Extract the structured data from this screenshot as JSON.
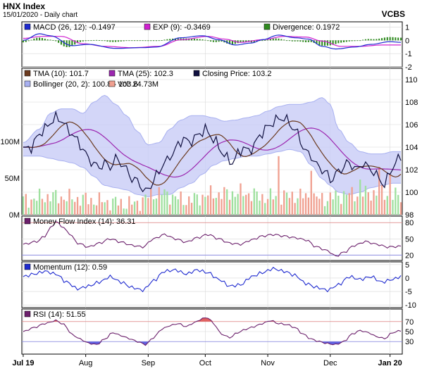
{
  "header": {
    "title": "HNX Index",
    "subtitle": "15/01/2020 - Daily chart",
    "brand": "VCBS"
  },
  "x_axis": {
    "labels": [
      "Jul 19",
      "Aug",
      "Sep",
      "Oct",
      "Nov",
      "Dec",
      "Jan 20"
    ],
    "positions": [
      0,
      23,
      46,
      67,
      90,
      113,
      135
    ],
    "count": 140
  },
  "chart_data": [
    {
      "panel": "macd",
      "type": "line",
      "legend": [
        {
          "label": "MACD (26, 12): -0.1497",
          "color": "#1f2bd0"
        },
        {
          "label": "EXP (9): -0.3469",
          "color": "#d020d0"
        },
        {
          "label": "Divergence: 0.1972",
          "color": "#2f8a1f"
        }
      ],
      "ylim": [
        -2,
        1.4
      ],
      "ticks": [
        1,
        0,
        -1,
        -2
      ],
      "macd_anchors": [
        [
          0,
          0
        ],
        [
          6,
          0.5
        ],
        [
          10,
          0.35
        ],
        [
          18,
          -0.4
        ],
        [
          24,
          -0.3
        ],
        [
          34,
          -0.6
        ],
        [
          44,
          -0.55
        ],
        [
          49,
          -0.5
        ],
        [
          58,
          0.2
        ],
        [
          66,
          0.35
        ],
        [
          72,
          0.05
        ],
        [
          78,
          -0.35
        ],
        [
          84,
          -0.2
        ],
        [
          88,
          0.05
        ],
        [
          94,
          0.4
        ],
        [
          100,
          0.2
        ],
        [
          105,
          0.1
        ],
        [
          110,
          -0.45
        ],
        [
          115,
          -0.65
        ],
        [
          122,
          -0.5
        ],
        [
          128,
          -0.3
        ],
        [
          135,
          -0.1
        ],
        [
          139,
          -0.15
        ]
      ],
      "signal_anchors": [
        [
          0,
          0.15
        ],
        [
          7,
          0.3
        ],
        [
          14,
          0.3
        ],
        [
          22,
          -0.25
        ],
        [
          30,
          -0.45
        ],
        [
          40,
          -0.55
        ],
        [
          50,
          -0.45
        ],
        [
          58,
          0.05
        ],
        [
          68,
          0.3
        ],
        [
          74,
          0.1
        ],
        [
          80,
          -0.15
        ],
        [
          88,
          0.05
        ],
        [
          96,
          0.3
        ],
        [
          104,
          0.25
        ],
        [
          110,
          -0.05
        ],
        [
          117,
          -0.45
        ],
        [
          124,
          -0.45
        ],
        [
          132,
          -0.35
        ],
        [
          139,
          -0.35
        ]
      ]
    },
    {
      "panel": "price",
      "type": "line",
      "legend": [
        {
          "label": "TMA (10): 101.7",
          "color": "#6b3a1f"
        },
        {
          "label": "TMA (25): 102.3",
          "color": "#9c27b0"
        },
        {
          "label": "Closing Price: 103.2",
          "color": "#101040"
        },
        {
          "label": "Bollinger (20, 2): 100.8 - 103.6",
          "color": "#a8b0f0"
        },
        {
          "label": "Vol: 24.73M",
          "color": "#f0a090"
        }
      ],
      "ylim": [
        98,
        111
      ],
      "ticks": [
        98,
        100,
        102,
        104,
        106,
        108,
        110
      ],
      "volume_ticks": [
        "100M",
        "50M",
        "0M"
      ],
      "volume_max": 200,
      "close_anchors": [
        [
          0,
          103.8
        ],
        [
          3,
          104.0
        ],
        [
          6,
          105.2
        ],
        [
          8,
          105.6
        ],
        [
          10,
          106.2
        ],
        [
          12,
          106.6
        ],
        [
          14,
          106.4
        ],
        [
          17,
          105.4
        ],
        [
          20,
          104.6
        ],
        [
          22,
          103.8
        ],
        [
          24,
          103.0
        ],
        [
          26,
          102.5
        ],
        [
          28,
          102.2
        ],
        [
          30,
          102.6
        ],
        [
          32,
          102.2
        ],
        [
          34,
          103.0
        ],
        [
          36,
          102.6
        ],
        [
          38,
          102.0
        ],
        [
          40,
          101.2
        ],
        [
          42,
          101.0
        ],
        [
          44,
          100.3
        ],
        [
          45,
          100.0
        ],
        [
          47,
          100.6
        ],
        [
          49,
          101.5
        ],
        [
          52,
          102.6
        ],
        [
          55,
          103.4
        ],
        [
          57,
          104.2
        ],
        [
          59,
          104.8
        ],
        [
          61,
          104.4
        ],
        [
          63,
          104.8
        ],
        [
          65,
          105.2
        ],
        [
          67,
          105.6
        ],
        [
          69,
          105.0
        ],
        [
          71,
          104.4
        ],
        [
          73,
          103.6
        ],
        [
          75,
          103.0
        ],
        [
          77,
          102.6
        ],
        [
          79,
          103.4
        ],
        [
          81,
          104.0
        ],
        [
          83,
          103.6
        ],
        [
          85,
          104.2
        ],
        [
          87,
          105.0
        ],
        [
          89,
          105.6
        ],
        [
          91,
          106.0
        ],
        [
          93,
          106.4
        ],
        [
          95,
          106.6
        ],
        [
          97,
          106.4
        ],
        [
          99,
          105.8
        ],
        [
          101,
          105.2
        ],
        [
          103,
          104.0
        ],
        [
          104,
          103.6
        ],
        [
          106,
          103.2
        ],
        [
          108,
          102.4
        ],
        [
          110,
          102.0
        ],
        [
          112,
          101.6
        ],
        [
          113,
          101.0
        ],
        [
          115,
          101.6
        ],
        [
          117,
          102.0
        ],
        [
          119,
          102.6
        ],
        [
          121,
          102.4
        ],
        [
          123,
          102.0
        ],
        [
          125,
          102.6
        ],
        [
          127,
          102.2
        ],
        [
          129,
          101.8
        ],
        [
          131,
          101.2
        ],
        [
          133,
          100.6
        ],
        [
          135,
          101.8
        ],
        [
          137,
          102.6
        ],
        [
          139,
          103.2
        ]
      ],
      "bb_upper_anchors": [
        [
          0,
          104.4
        ],
        [
          6,
          105.6
        ],
        [
          10,
          107.0
        ],
        [
          14,
          107.4
        ],
        [
          18,
          107.4
        ],
        [
          22,
          107.0
        ],
        [
          26,
          108.0
        ],
        [
          30,
          108.6
        ],
        [
          34,
          107.8
        ],
        [
          38,
          106.8
        ],
        [
          42,
          105.4
        ],
        [
          46,
          104.2
        ],
        [
          50,
          104.4
        ],
        [
          54,
          105.6
        ],
        [
          58,
          106.4
        ],
        [
          62,
          106.8
        ],
        [
          66,
          106.8
        ],
        [
          70,
          106.6
        ],
        [
          74,
          106.3
        ],
        [
          78,
          106.4
        ],
        [
          82,
          106.6
        ],
        [
          86,
          106.8
        ],
        [
          90,
          107.2
        ],
        [
          94,
          107.6
        ],
        [
          98,
          107.8
        ],
        [
          102,
          107.8
        ],
        [
          106,
          108.0
        ],
        [
          110,
          108.4
        ],
        [
          113,
          107.8
        ],
        [
          116,
          105.6
        ],
        [
          120,
          104.4
        ],
        [
          124,
          103.6
        ],
        [
          128,
          103.4
        ],
        [
          132,
          103.4
        ],
        [
          136,
          103.6
        ],
        [
          139,
          103.6
        ]
      ],
      "bb_lower_anchors": [
        [
          0,
          103.2
        ],
        [
          6,
          103.2
        ],
        [
          10,
          103.0
        ],
        [
          14,
          102.8
        ],
        [
          18,
          102.6
        ],
        [
          22,
          102.2
        ],
        [
          26,
          101.4
        ],
        [
          30,
          100.6
        ],
        [
          34,
          100.4
        ],
        [
          38,
          100.2
        ],
        [
          42,
          99.8
        ],
        [
          46,
          99.6
        ],
        [
          50,
          99.8
        ],
        [
          54,
          99.8
        ],
        [
          58,
          100.4
        ],
        [
          62,
          100.8
        ],
        [
          66,
          101.6
        ],
        [
          70,
          102.4
        ],
        [
          74,
          102.8
        ],
        [
          78,
          103.0
        ],
        [
          82,
          103.2
        ],
        [
          86,
          103.2
        ],
        [
          90,
          103.4
        ],
        [
          94,
          103.6
        ],
        [
          98,
          103.8
        ],
        [
          102,
          103.6
        ],
        [
          106,
          102.4
        ],
        [
          110,
          101.2
        ],
        [
          113,
          100.6
        ],
        [
          116,
          100.0
        ],
        [
          120,
          99.8
        ],
        [
          124,
          100.0
        ],
        [
          128,
          100.4
        ],
        [
          132,
          100.6
        ],
        [
          136,
          100.8
        ],
        [
          139,
          100.8
        ]
      ],
      "volume_anchors": [
        [
          0,
          20
        ],
        [
          10,
          25
        ],
        [
          20,
          22
        ],
        [
          30,
          18
        ],
        [
          40,
          15
        ],
        [
          50,
          30
        ],
        [
          60,
          20
        ],
        [
          70,
          28
        ],
        [
          80,
          30
        ],
        [
          90,
          24
        ],
        [
          100,
          26
        ],
        [
          110,
          22
        ],
        [
          120,
          28
        ],
        [
          130,
          30
        ],
        [
          139,
          25
        ]
      ],
      "volume_spikes": [
        [
          94,
          80
        ],
        [
          106,
          60
        ],
        [
          124,
          48
        ],
        [
          131,
          65
        ],
        [
          135,
          55
        ]
      ]
    },
    {
      "panel": "mfi",
      "type": "line",
      "legend": [
        {
          "label": "Money Flow Index (14): 36.31",
          "color": "#6b1f6b"
        }
      ],
      "ylim": [
        10,
        92
      ],
      "ticks": [
        80,
        50,
        20
      ],
      "bands": [
        80,
        20
      ],
      "anchors": [
        [
          0,
          40
        ],
        [
          5,
          45
        ],
        [
          8,
          55
        ],
        [
          10,
          70
        ],
        [
          12,
          82
        ],
        [
          14,
          74
        ],
        [
          17,
          60
        ],
        [
          20,
          42
        ],
        [
          24,
          35
        ],
        [
          28,
          42
        ],
        [
          32,
          50
        ],
        [
          36,
          44
        ],
        [
          40,
          38
        ],
        [
          44,
          35
        ],
        [
          48,
          50
        ],
        [
          52,
          58
        ],
        [
          56,
          50
        ],
        [
          60,
          44
        ],
        [
          64,
          52
        ],
        [
          68,
          58
        ],
        [
          72,
          50
        ],
        [
          76,
          42
        ],
        [
          80,
          40
        ],
        [
          84,
          48
        ],
        [
          88,
          55
        ],
        [
          92,
          58
        ],
        [
          96,
          55
        ],
        [
          100,
          52
        ],
        [
          104,
          48
        ],
        [
          108,
          35
        ],
        [
          112,
          28
        ],
        [
          115,
          18
        ],
        [
          118,
          25
        ],
        [
          122,
          38
        ],
        [
          126,
          45
        ],
        [
          130,
          40
        ],
        [
          134,
          35
        ],
        [
          139,
          36
        ]
      ]
    },
    {
      "panel": "momentum",
      "type": "line",
      "legend": [
        {
          "label": "Momentum (12): 0.59",
          "color": "#1f2bd0"
        }
      ],
      "ylim": [
        -11,
        6
      ],
      "ticks": [
        5,
        0,
        -5,
        -10
      ],
      "anchors": [
        [
          0,
          0.5
        ],
        [
          4,
          1.5
        ],
        [
          8,
          2.5
        ],
        [
          12,
          1.5
        ],
        [
          16,
          -1.5
        ],
        [
          20,
          -4
        ],
        [
          24,
          -3
        ],
        [
          28,
          -1.5
        ],
        [
          32,
          0.5
        ],
        [
          36,
          -1.5
        ],
        [
          40,
          -3.5
        ],
        [
          44,
          -4.5
        ],
        [
          48,
          -1
        ],
        [
          52,
          2.5
        ],
        [
          56,
          3
        ],
        [
          60,
          1.5
        ],
        [
          64,
          3
        ],
        [
          68,
          2
        ],
        [
          72,
          -0.5
        ],
        [
          76,
          -3
        ],
        [
          80,
          -2.5
        ],
        [
          84,
          0.5
        ],
        [
          88,
          2
        ],
        [
          92,
          3.5
        ],
        [
          96,
          2.5
        ],
        [
          100,
          1
        ],
        [
          104,
          -2
        ],
        [
          108,
          -3.5
        ],
        [
          112,
          -4.5
        ],
        [
          116,
          -2.5
        ],
        [
          120,
          0.5
        ],
        [
          124,
          -0.5
        ],
        [
          128,
          0.5
        ],
        [
          132,
          -1.5
        ],
        [
          136,
          -0.5
        ],
        [
          139,
          0.6
        ]
      ]
    },
    {
      "panel": "rsi",
      "type": "area",
      "legend": [
        {
          "label": "RSI (14): 51.55",
          "color": "#6b1f6b"
        }
      ],
      "ylim": [
        5,
        95
      ],
      "ticks": [
        70,
        50,
        30
      ],
      "bands": [
        70,
        30
      ],
      "fill_high_color": "#e06060",
      "fill_low_color": "#6060e0",
      "anchors": [
        [
          0,
          50
        ],
        [
          4,
          58
        ],
        [
          8,
          66
        ],
        [
          12,
          72
        ],
        [
          15,
          64
        ],
        [
          18,
          44
        ],
        [
          21,
          35
        ],
        [
          24,
          27
        ],
        [
          27,
          24
        ],
        [
          30,
          35
        ],
        [
          33,
          48
        ],
        [
          36,
          42
        ],
        [
          39,
          36
        ],
        [
          42,
          30
        ],
        [
          45,
          24
        ],
        [
          48,
          38
        ],
        [
          51,
          55
        ],
        [
          54,
          62
        ],
        [
          57,
          66
        ],
        [
          60,
          60
        ],
        [
          63,
          68
        ],
        [
          66,
          76
        ],
        [
          68,
          78
        ],
        [
          70,
          66
        ],
        [
          73,
          45
        ],
        [
          76,
          38
        ],
        [
          79,
          48
        ],
        [
          82,
          55
        ],
        [
          85,
          60
        ],
        [
          88,
          66
        ],
        [
          91,
          72
        ],
        [
          94,
          66
        ],
        [
          97,
          64
        ],
        [
          100,
          58
        ],
        [
          103,
          45
        ],
        [
          106,
          35
        ],
        [
          109,
          30
        ],
        [
          112,
          26
        ],
        [
          115,
          24
        ],
        [
          118,
          30
        ],
        [
          121,
          45
        ],
        [
          124,
          52
        ],
        [
          127,
          48
        ],
        [
          130,
          40
        ],
        [
          133,
          36
        ],
        [
          136,
          48
        ],
        [
          139,
          52
        ]
      ]
    }
  ]
}
